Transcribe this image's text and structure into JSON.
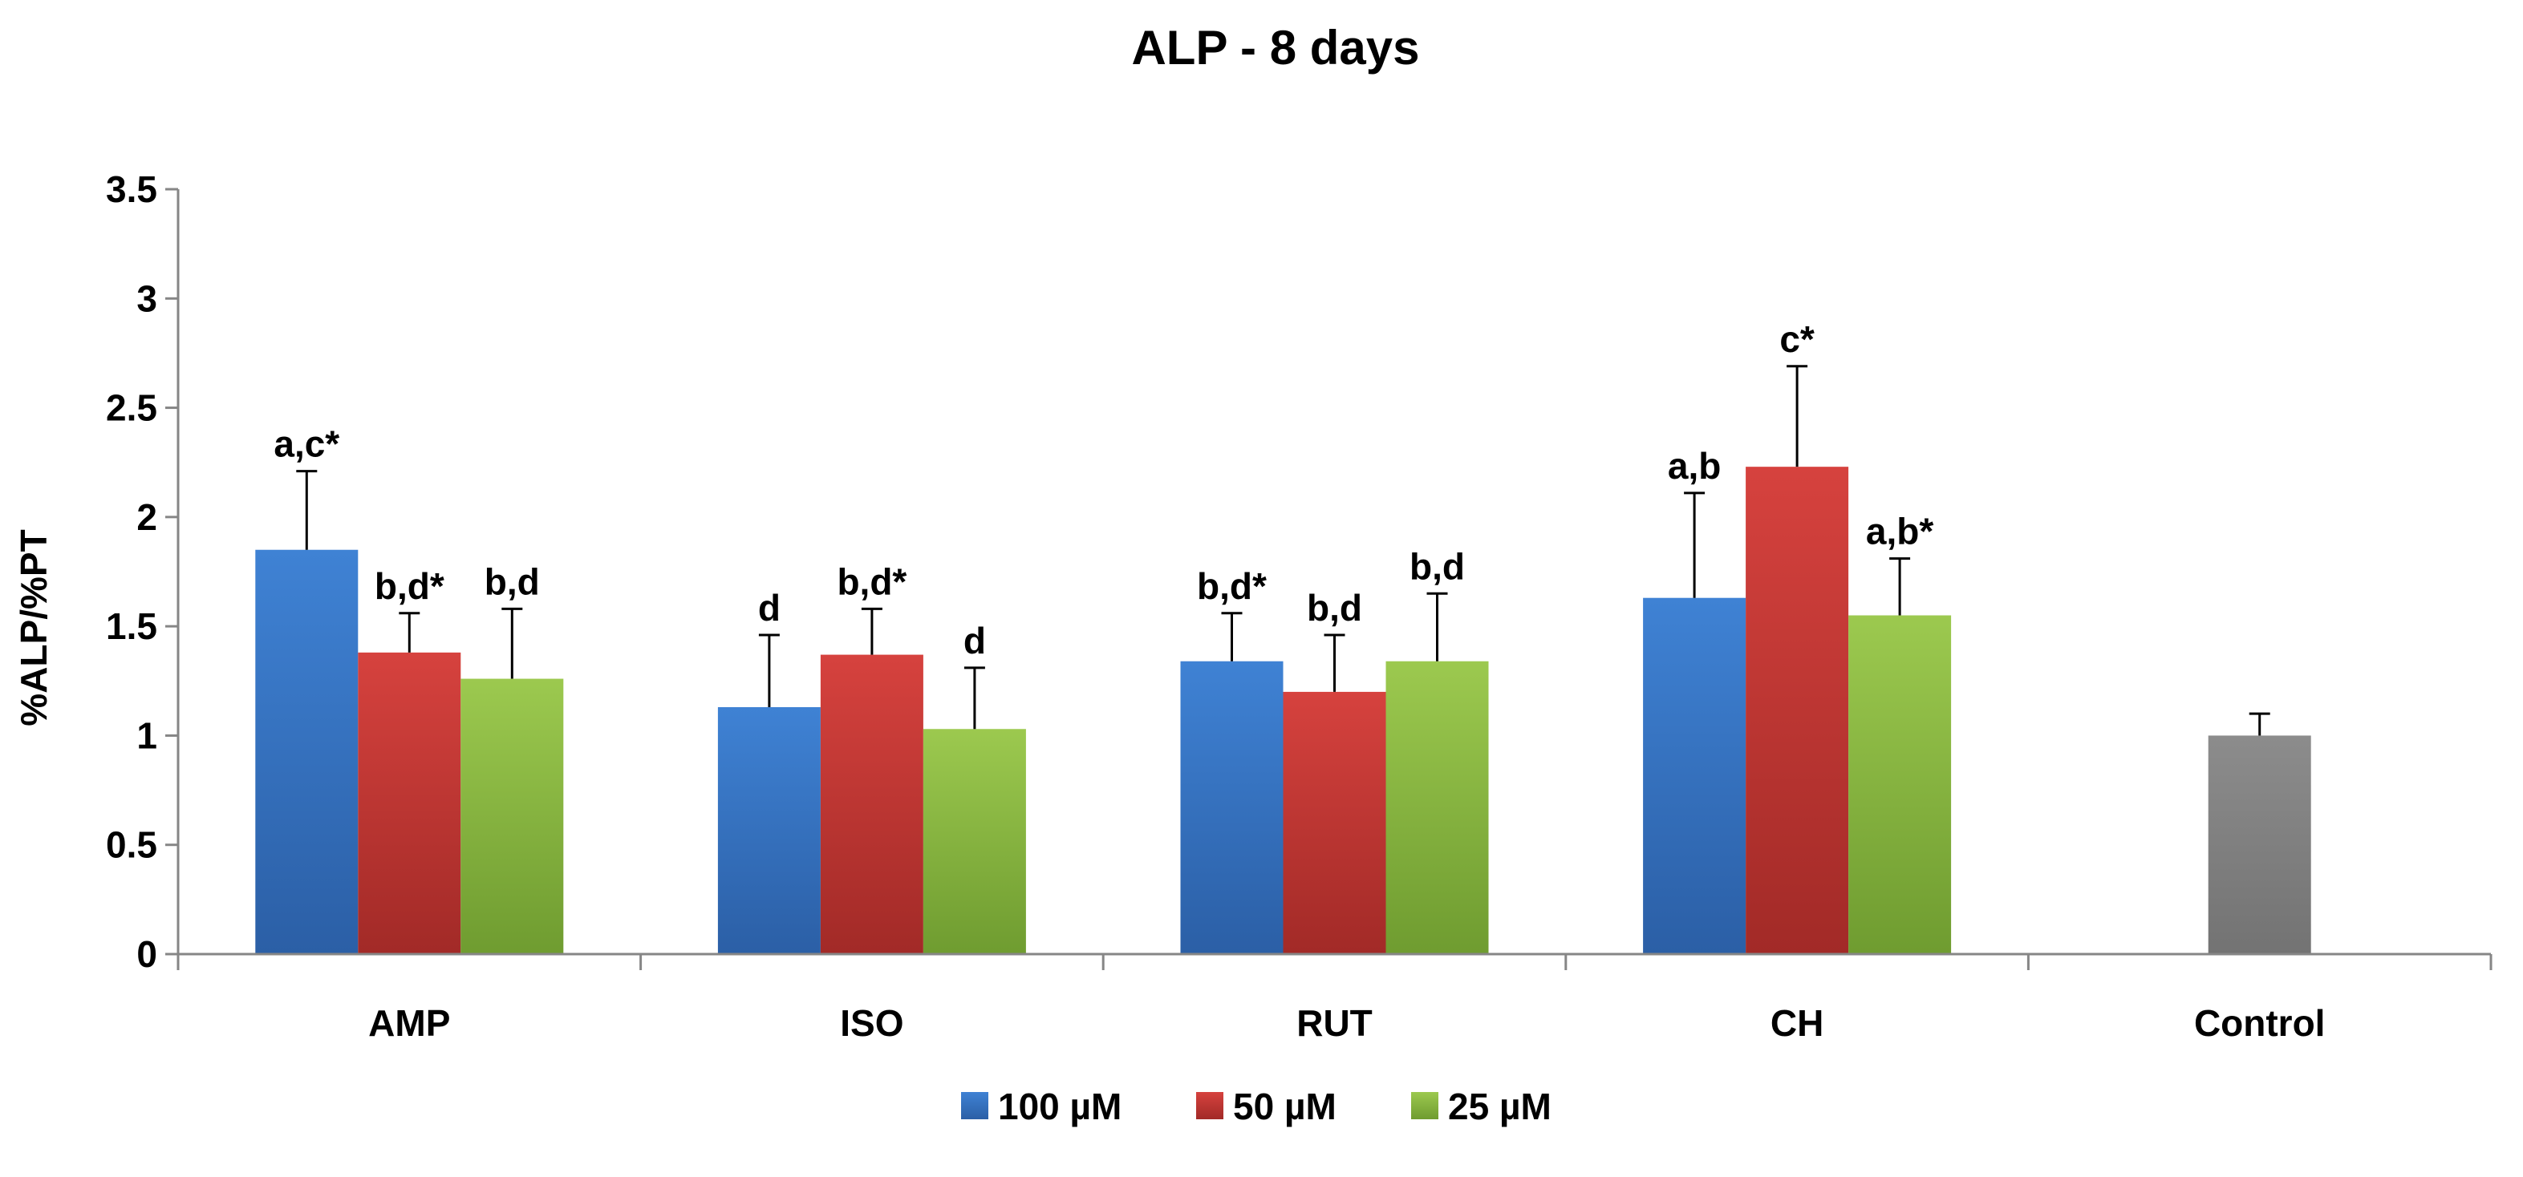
{
  "chart_data": {
    "type": "bar",
    "title": "ALP - 8 days",
    "xlabel": "",
    "ylabel": "%ALP/%PT",
    "ylim": [
      0,
      3.5
    ],
    "yticks": [
      0,
      0.5,
      1,
      1.5,
      2,
      2.5,
      3,
      3.5
    ],
    "ytick_labels": [
      "0",
      "0.5",
      "1",
      "1.5",
      "2",
      "2.5",
      "3",
      "3.5"
    ],
    "grid": false,
    "legend_position": "bottom",
    "categories": [
      "AMP",
      "ISO",
      "RUT",
      "CH",
      "Control"
    ],
    "series": [
      {
        "name": "100 µM",
        "color": "#3a76c4",
        "values": [
          1.85,
          1.13,
          1.34,
          1.63,
          null
        ],
        "errors": [
          0.36,
          0.33,
          0.22,
          0.48,
          null
        ],
        "annotations": [
          "a,c*",
          "d",
          "b,d*",
          "a,b",
          null
        ]
      },
      {
        "name": "50 µM",
        "color": "#c83a36",
        "values": [
          1.38,
          1.37,
          1.2,
          2.23,
          null
        ],
        "errors": [
          0.18,
          0.21,
          0.26,
          0.46,
          null
        ],
        "annotations": [
          "b,d*",
          "b,d*",
          "b,d",
          "c*",
          null
        ]
      },
      {
        "name": "25 µM",
        "color": "#8fbe44",
        "values": [
          1.26,
          1.03,
          1.34,
          1.55,
          null
        ],
        "errors": [
          0.32,
          0.28,
          0.31,
          0.26,
          null
        ],
        "annotations": [
          "b,d",
          "d",
          "b,d",
          "a,b*",
          null
        ]
      }
    ],
    "control": {
      "category": "Control",
      "value": 1.0,
      "error": 0.1,
      "color": "#808080"
    }
  }
}
